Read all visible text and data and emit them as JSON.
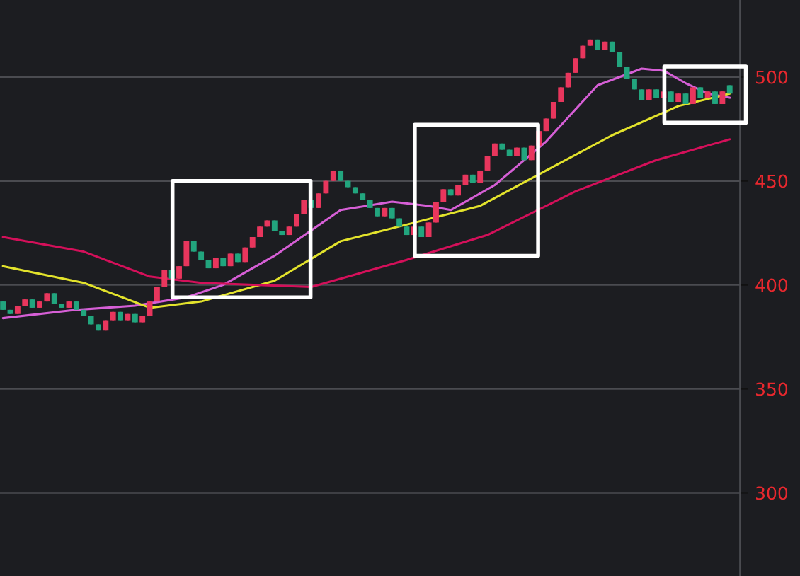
{
  "chart_data": {
    "type": "candlestick",
    "categories": [
      null,
      null,
      null,
      null,
      null,
      null,
      null,
      null,
      null,
      null,
      null,
      null,
      null,
      null,
      null,
      null,
      null,
      null,
      null,
      null,
      null,
      null,
      null,
      null,
      null,
      null,
      null,
      null,
      null,
      null,
      null,
      null,
      null,
      null,
      null,
      null,
      null,
      null,
      null,
      null,
      null,
      null,
      null,
      null,
      null,
      null,
      null,
      null,
      null,
      null,
      null,
      null,
      null,
      null,
      null,
      null,
      null,
      null,
      null,
      null,
      null,
      null,
      null,
      null,
      null,
      null,
      null,
      null,
      null,
      null,
      null,
      null,
      null,
      null,
      null,
      null,
      null,
      null,
      null,
      null,
      null,
      null,
      null,
      null,
      null,
      null,
      null,
      null,
      null,
      null,
      null,
      null,
      null,
      null,
      null,
      null,
      null,
      null,
      null,
      null
    ],
    "ohlc": [
      [
        392,
        392,
        388,
        388
      ],
      [
        388,
        388,
        386,
        386
      ],
      [
        386,
        390,
        386,
        390
      ],
      [
        390,
        393,
        390,
        393
      ],
      [
        393,
        393,
        389,
        389
      ],
      [
        389,
        392,
        389,
        392
      ],
      [
        392,
        396,
        392,
        396
      ],
      [
        396,
        396,
        391,
        391
      ],
      [
        391,
        391,
        389,
        389
      ],
      [
        389,
        392,
        389,
        392
      ],
      [
        392,
        392,
        388,
        388
      ],
      [
        388,
        388,
        385,
        385
      ],
      [
        385,
        385,
        381,
        381
      ],
      [
        381,
        381,
        378,
        378
      ],
      [
        378,
        383,
        378,
        383
      ],
      [
        383,
        387,
        383,
        387
      ],
      [
        387,
        387,
        383,
        383
      ],
      [
        383,
        386,
        383,
        386
      ],
      [
        386,
        386,
        382,
        382
      ],
      [
        382,
        385,
        382,
        385
      ],
      [
        385,
        392,
        385,
        392
      ],
      [
        392,
        399,
        392,
        399
      ],
      [
        399,
        407,
        399,
        407
      ],
      [
        407,
        407,
        403,
        403
      ],
      [
        403,
        409,
        403,
        409
      ],
      [
        409,
        421,
        409,
        421
      ],
      [
        421,
        421,
        416,
        416
      ],
      [
        416,
        416,
        412,
        412
      ],
      [
        412,
        412,
        408,
        408
      ],
      [
        408,
        413,
        408,
        413
      ],
      [
        413,
        413,
        409,
        409
      ],
      [
        409,
        415,
        409,
        415
      ],
      [
        415,
        415,
        411,
        411
      ],
      [
        411,
        418,
        411,
        418
      ],
      [
        418,
        423,
        418,
        423
      ],
      [
        423,
        428,
        423,
        428
      ],
      [
        428,
        431,
        428,
        431
      ],
      [
        431,
        431,
        426,
        426
      ],
      [
        426,
        426,
        424,
        424
      ],
      [
        424,
        428,
        424,
        428
      ],
      [
        428,
        434,
        428,
        434
      ],
      [
        434,
        441,
        434,
        441
      ],
      [
        441,
        441,
        437,
        437
      ],
      [
        437,
        444,
        437,
        444
      ],
      [
        444,
        450,
        444,
        450
      ],
      [
        450,
        455,
        450,
        455
      ],
      [
        455,
        455,
        450,
        450
      ],
      [
        450,
        450,
        447,
        447
      ],
      [
        447,
        447,
        444,
        444
      ],
      [
        444,
        444,
        441,
        441
      ],
      [
        441,
        441,
        437,
        437
      ],
      [
        437,
        437,
        433,
        433
      ],
      [
        433,
        437,
        433,
        437
      ],
      [
        437,
        437,
        432,
        432
      ],
      [
        432,
        432,
        428,
        428
      ],
      [
        428,
        428,
        424,
        424
      ],
      [
        424,
        428,
        424,
        428
      ],
      [
        428,
        428,
        423,
        423
      ],
      [
        423,
        430,
        423,
        430
      ],
      [
        430,
        440,
        430,
        440
      ],
      [
        440,
        446,
        440,
        446
      ],
      [
        446,
        446,
        443,
        443
      ],
      [
        443,
        448,
        443,
        448
      ],
      [
        448,
        453,
        448,
        453
      ],
      [
        453,
        453,
        449,
        449
      ],
      [
        449,
        455,
        449,
        455
      ],
      [
        455,
        462,
        455,
        462
      ],
      [
        462,
        468,
        462,
        468
      ],
      [
        468,
        468,
        465,
        465
      ],
      [
        465,
        465,
        462,
        462
      ],
      [
        462,
        466,
        462,
        466
      ],
      [
        466,
        466,
        460,
        460
      ],
      [
        460,
        467,
        460,
        467
      ],
      [
        467,
        474,
        467,
        474
      ],
      [
        474,
        480,
        474,
        480
      ],
      [
        480,
        488,
        480,
        488
      ],
      [
        488,
        495,
        488,
        495
      ],
      [
        495,
        502,
        495,
        502
      ],
      [
        502,
        509,
        502,
        509
      ],
      [
        509,
        515,
        509,
        515
      ],
      [
        515,
        518,
        515,
        518
      ],
      [
        518,
        518,
        513,
        513
      ],
      [
        513,
        517,
        513,
        517
      ],
      [
        517,
        517,
        512,
        512
      ],
      [
        512,
        512,
        505,
        505
      ],
      [
        505,
        505,
        499,
        499
      ],
      [
        499,
        499,
        494,
        494
      ],
      [
        494,
        494,
        489,
        489
      ],
      [
        489,
        494,
        489,
        494
      ],
      [
        494,
        494,
        490,
        490
      ],
      [
        490,
        493,
        490,
        493
      ],
      [
        493,
        493,
        488,
        488
      ],
      [
        488,
        492,
        488,
        492
      ],
      [
        492,
        492,
        487,
        487
      ],
      [
        487,
        495,
        487,
        495
      ],
      [
        495,
        495,
        490,
        490
      ],
      [
        490,
        493,
        490,
        493
      ],
      [
        493,
        493,
        487,
        487
      ],
      [
        487,
        493,
        487,
        493
      ],
      [
        496,
        496,
        492,
        492
      ]
    ],
    "series": [
      {
        "type": "line",
        "color": "#d65fd6",
        "values": [
          384,
          null,
          null,
          null,
          null,
          null,
          null,
          null,
          null,
          null,
          388,
          null,
          null,
          null,
          null,
          null,
          null,
          null,
          390,
          null,
          null,
          null,
          null,
          null,
          null,
          394,
          null,
          null,
          null,
          null,
          400,
          null,
          null,
          null,
          null,
          null,
          null,
          414,
          null,
          null,
          null,
          null,
          null,
          null,
          null,
          null,
          436,
          null,
          null,
          null,
          null,
          null,
          null,
          440,
          null,
          null,
          null,
          null,
          438,
          null,
          null,
          436,
          null,
          null,
          null,
          null,
          null,
          448,
          null,
          null,
          null,
          null,
          null,
          null,
          469,
          null,
          null,
          null,
          null,
          null,
          null,
          496,
          null,
          null,
          null,
          null,
          null,
          504,
          null,
          null,
          503,
          null,
          null,
          497,
          null,
          null,
          492,
          null,
          null,
          490
        ]
      },
      {
        "type": "line",
        "color": "#e3e32c",
        "values": [
          409,
          null,
          null,
          null,
          null,
          null,
          null,
          null,
          null,
          null,
          null,
          401,
          null,
          null,
          null,
          null,
          null,
          null,
          null,
          null,
          389,
          null,
          null,
          null,
          null,
          null,
          null,
          392,
          null,
          null,
          null,
          null,
          null,
          null,
          null,
          null,
          null,
          402,
          null,
          null,
          null,
          null,
          null,
          null,
          null,
          null,
          421,
          null,
          null,
          null,
          null,
          null,
          null,
          null,
          null,
          429,
          null,
          null,
          null,
          null,
          null,
          null,
          null,
          null,
          null,
          438,
          null,
          null,
          null,
          null,
          null,
          null,
          null,
          null,
          455,
          null,
          null,
          null,
          null,
          null,
          null,
          null,
          null,
          472,
          null,
          null,
          null,
          null,
          null,
          null,
          null,
          null,
          486,
          null,
          null,
          null,
          null,
          null,
          null,
          492
        ]
      },
      {
        "type": "line",
        "color": "#d4105a",
        "values": [
          423,
          null,
          null,
          null,
          null,
          null,
          null,
          null,
          null,
          null,
          null,
          416,
          null,
          null,
          null,
          null,
          null,
          null,
          null,
          null,
          404,
          null,
          null,
          null,
          null,
          null,
          null,
          401,
          null,
          null,
          null,
          null,
          null,
          null,
          null,
          null,
          null,
          null,
          null,
          null,
          null,
          null,
          399,
          null,
          null,
          null,
          null,
          null,
          null,
          null,
          null,
          null,
          null,
          null,
          null,
          412,
          null,
          null,
          null,
          null,
          null,
          null,
          null,
          null,
          null,
          null,
          424,
          null,
          null,
          null,
          null,
          null,
          null,
          null,
          null,
          null,
          null,
          null,
          445,
          null,
          null,
          null,
          null,
          null,
          null,
          null,
          null,
          null,
          null,
          460,
          null,
          null,
          null,
          null,
          null,
          null,
          null,
          null,
          null,
          470
        ]
      }
    ],
    "ylim": [
      260,
      537
    ],
    "yticks": [
      300,
      350,
      400,
      450,
      500
    ],
    "grid": "y",
    "tick_labels": "y"
  }
}
